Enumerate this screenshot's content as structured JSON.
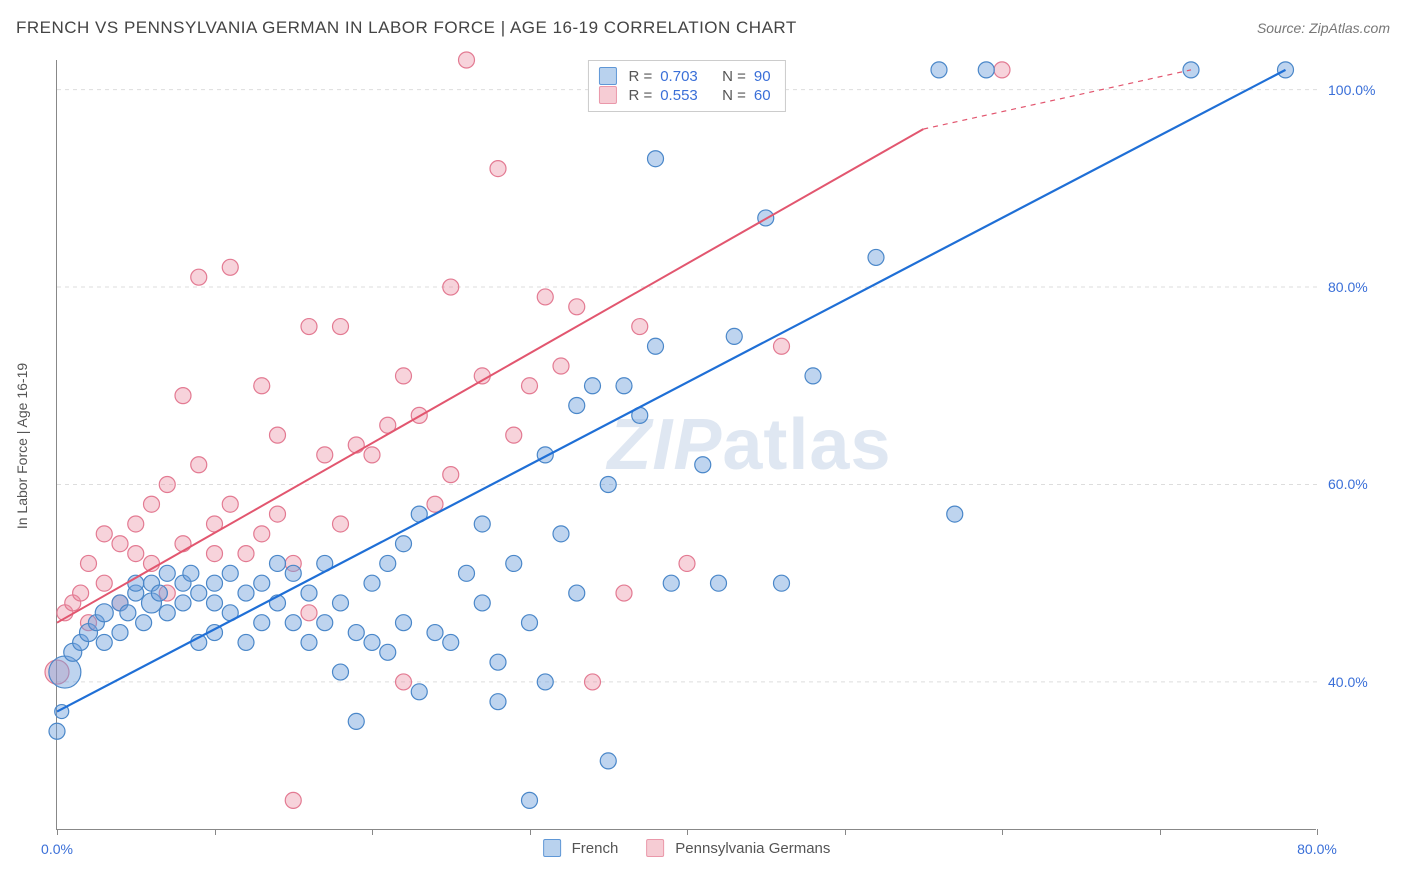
{
  "header": {
    "title": "FRENCH VS PENNSYLVANIA GERMAN IN LABOR FORCE | AGE 16-19 CORRELATION CHART",
    "source": "Source: ZipAtlas.com"
  },
  "axes": {
    "y_label": "In Labor Force | Age 16-19",
    "xlim": [
      0,
      80
    ],
    "ylim": [
      25,
      103
    ],
    "x_ticks": [
      0,
      10,
      20,
      30,
      40,
      50,
      60,
      70,
      80
    ],
    "x_tick_labels": {
      "0": "0.0%",
      "80": "80.0%"
    },
    "y_ticks": [
      40,
      60,
      80,
      100
    ],
    "y_tick_labels": {
      "40": "40.0%",
      "60": "60.0%",
      "80": "80.0%",
      "100": "100.0%"
    },
    "grid_color": "#dddddd",
    "axis_color": "#888888",
    "tick_label_color": "#3a6fd8"
  },
  "watermark": {
    "zip": "ZIP",
    "atlas": "atlas"
  },
  "series": {
    "french": {
      "label": "French",
      "marker_fill": "rgba(110,160,220,0.45)",
      "marker_stroke": "#4a87c9",
      "line_color": "#1f6fd6",
      "line_width": 2.2,
      "swatch_bg": "#b9d2ee",
      "swatch_border": "#5f97d6",
      "r": 0.703,
      "n": 90,
      "trend": {
        "x1": 0,
        "y1": 37,
        "x2": 78,
        "y2": 102
      },
      "points": [
        {
          "x": 0,
          "y": 35,
          "r": 8
        },
        {
          "x": 0.3,
          "y": 37,
          "r": 7
        },
        {
          "x": 0.5,
          "y": 41,
          "r": 16
        },
        {
          "x": 1,
          "y": 43,
          "r": 9
        },
        {
          "x": 1.5,
          "y": 44,
          "r": 8
        },
        {
          "x": 2,
          "y": 45,
          "r": 9
        },
        {
          "x": 2.5,
          "y": 46,
          "r": 8
        },
        {
          "x": 3,
          "y": 44,
          "r": 8
        },
        {
          "x": 3,
          "y": 47,
          "r": 9
        },
        {
          "x": 4,
          "y": 45,
          "r": 8
        },
        {
          "x": 4,
          "y": 48,
          "r": 8
        },
        {
          "x": 4.5,
          "y": 47,
          "r": 8
        },
        {
          "x": 5,
          "y": 49,
          "r": 8
        },
        {
          "x": 5,
          "y": 50,
          "r": 8
        },
        {
          "x": 5.5,
          "y": 46,
          "r": 8
        },
        {
          "x": 6,
          "y": 48,
          "r": 10
        },
        {
          "x": 6,
          "y": 50,
          "r": 8
        },
        {
          "x": 6.5,
          "y": 49,
          "r": 8
        },
        {
          "x": 7,
          "y": 47,
          "r": 8
        },
        {
          "x": 7,
          "y": 51,
          "r": 8
        },
        {
          "x": 8,
          "y": 48,
          "r": 8
        },
        {
          "x": 8,
          "y": 50,
          "r": 8
        },
        {
          "x": 8.5,
          "y": 51,
          "r": 8
        },
        {
          "x": 9,
          "y": 44,
          "r": 8
        },
        {
          "x": 9,
          "y": 49,
          "r": 8
        },
        {
          "x": 10,
          "y": 45,
          "r": 8
        },
        {
          "x": 10,
          "y": 48,
          "r": 8
        },
        {
          "x": 10,
          "y": 50,
          "r": 8
        },
        {
          "x": 11,
          "y": 47,
          "r": 8
        },
        {
          "x": 11,
          "y": 51,
          "r": 8
        },
        {
          "x": 12,
          "y": 49,
          "r": 8
        },
        {
          "x": 12,
          "y": 44,
          "r": 8
        },
        {
          "x": 13,
          "y": 46,
          "r": 8
        },
        {
          "x": 13,
          "y": 50,
          "r": 8
        },
        {
          "x": 14,
          "y": 52,
          "r": 8
        },
        {
          "x": 14,
          "y": 48,
          "r": 8
        },
        {
          "x": 15,
          "y": 46,
          "r": 8
        },
        {
          "x": 15,
          "y": 51,
          "r": 8
        },
        {
          "x": 16,
          "y": 44,
          "r": 8
        },
        {
          "x": 16,
          "y": 49,
          "r": 8
        },
        {
          "x": 17,
          "y": 52,
          "r": 8
        },
        {
          "x": 17,
          "y": 46,
          "r": 8
        },
        {
          "x": 18,
          "y": 41,
          "r": 8
        },
        {
          "x": 18,
          "y": 48,
          "r": 8
        },
        {
          "x": 19,
          "y": 36,
          "r": 8
        },
        {
          "x": 19,
          "y": 45,
          "r": 8
        },
        {
          "x": 20,
          "y": 44,
          "r": 8
        },
        {
          "x": 20,
          "y": 50,
          "r": 8
        },
        {
          "x": 21,
          "y": 52,
          "r": 8
        },
        {
          "x": 21,
          "y": 43,
          "r": 8
        },
        {
          "x": 22,
          "y": 46,
          "r": 8
        },
        {
          "x": 22,
          "y": 54,
          "r": 8
        },
        {
          "x": 23,
          "y": 39,
          "r": 8
        },
        {
          "x": 23,
          "y": 57,
          "r": 8
        },
        {
          "x": 24,
          "y": 45,
          "r": 8
        },
        {
          "x": 25,
          "y": 44,
          "r": 8
        },
        {
          "x": 26,
          "y": 51,
          "r": 8
        },
        {
          "x": 27,
          "y": 48,
          "r": 8
        },
        {
          "x": 27,
          "y": 56,
          "r": 8
        },
        {
          "x": 28,
          "y": 42,
          "r": 8
        },
        {
          "x": 28,
          "y": 38,
          "r": 8
        },
        {
          "x": 29,
          "y": 52,
          "r": 8
        },
        {
          "x": 30,
          "y": 28,
          "r": 8
        },
        {
          "x": 30,
          "y": 46,
          "r": 8
        },
        {
          "x": 31,
          "y": 40,
          "r": 8
        },
        {
          "x": 31,
          "y": 63,
          "r": 8
        },
        {
          "x": 32,
          "y": 55,
          "r": 8
        },
        {
          "x": 33,
          "y": 49,
          "r": 8
        },
        {
          "x": 33,
          "y": 68,
          "r": 8
        },
        {
          "x": 34,
          "y": 70,
          "r": 8
        },
        {
          "x": 35,
          "y": 60,
          "r": 8
        },
        {
          "x": 35,
          "y": 32,
          "r": 8
        },
        {
          "x": 36,
          "y": 70,
          "r": 8
        },
        {
          "x": 37,
          "y": 67,
          "r": 8
        },
        {
          "x": 38,
          "y": 93,
          "r": 8
        },
        {
          "x": 38,
          "y": 74,
          "r": 8
        },
        {
          "x": 39,
          "y": 50,
          "r": 8
        },
        {
          "x": 40,
          "y": 102,
          "r": 8
        },
        {
          "x": 41,
          "y": 62,
          "r": 8
        },
        {
          "x": 42,
          "y": 50,
          "r": 8
        },
        {
          "x": 43,
          "y": 75,
          "r": 8
        },
        {
          "x": 45,
          "y": 87,
          "r": 8
        },
        {
          "x": 46,
          "y": 50,
          "r": 8
        },
        {
          "x": 48,
          "y": 71,
          "r": 8
        },
        {
          "x": 52,
          "y": 83,
          "r": 8
        },
        {
          "x": 56,
          "y": 102,
          "r": 8
        },
        {
          "x": 57,
          "y": 57,
          "r": 8
        },
        {
          "x": 59,
          "y": 102,
          "r": 8
        },
        {
          "x": 72,
          "y": 102,
          "r": 8
        },
        {
          "x": 78,
          "y": 102,
          "r": 8
        }
      ]
    },
    "penn_german": {
      "label": "Pennsylvania Germans",
      "marker_fill": "rgba(235,140,160,0.38)",
      "marker_stroke": "#e37a92",
      "line_color": "#e2566f",
      "line_width": 2.0,
      "swatch_bg": "#f6ccd4",
      "swatch_border": "#ea98aa",
      "r": 0.553,
      "n": 60,
      "trend": {
        "x1": 0,
        "y1": 46,
        "x2": 55,
        "y2": 96
      },
      "trend_ext": {
        "x1": 55,
        "y1": 96,
        "x2": 72,
        "y2": 102
      },
      "points": [
        {
          "x": 0,
          "y": 41,
          "r": 12
        },
        {
          "x": 0.5,
          "y": 47,
          "r": 8
        },
        {
          "x": 1,
          "y": 48,
          "r": 8
        },
        {
          "x": 1.5,
          "y": 49,
          "r": 8
        },
        {
          "x": 2,
          "y": 46,
          "r": 8
        },
        {
          "x": 2,
          "y": 52,
          "r": 8
        },
        {
          "x": 3,
          "y": 55,
          "r": 8
        },
        {
          "x": 3,
          "y": 50,
          "r": 8
        },
        {
          "x": 4,
          "y": 48,
          "r": 8
        },
        {
          "x": 4,
          "y": 54,
          "r": 8
        },
        {
          "x": 5,
          "y": 53,
          "r": 8
        },
        {
          "x": 5,
          "y": 56,
          "r": 8
        },
        {
          "x": 6,
          "y": 52,
          "r": 8
        },
        {
          "x": 6,
          "y": 58,
          "r": 8
        },
        {
          "x": 7,
          "y": 49,
          "r": 8
        },
        {
          "x": 7,
          "y": 60,
          "r": 8
        },
        {
          "x": 8,
          "y": 69,
          "r": 8
        },
        {
          "x": 8,
          "y": 54,
          "r": 8
        },
        {
          "x": 9,
          "y": 81,
          "r": 8
        },
        {
          "x": 9,
          "y": 62,
          "r": 8
        },
        {
          "x": 10,
          "y": 56,
          "r": 8
        },
        {
          "x": 10,
          "y": 53,
          "r": 8
        },
        {
          "x": 11,
          "y": 82,
          "r": 8
        },
        {
          "x": 11,
          "y": 58,
          "r": 8
        },
        {
          "x": 12,
          "y": 53,
          "r": 8
        },
        {
          "x": 13,
          "y": 70,
          "r": 8
        },
        {
          "x": 13,
          "y": 55,
          "r": 8
        },
        {
          "x": 14,
          "y": 65,
          "r": 8
        },
        {
          "x": 14,
          "y": 57,
          "r": 8
        },
        {
          "x": 15,
          "y": 28,
          "r": 8
        },
        {
          "x": 15,
          "y": 52,
          "r": 8
        },
        {
          "x": 16,
          "y": 47,
          "r": 8
        },
        {
          "x": 16,
          "y": 76,
          "r": 8
        },
        {
          "x": 17,
          "y": 63,
          "r": 8
        },
        {
          "x": 18,
          "y": 76,
          "r": 8
        },
        {
          "x": 18,
          "y": 56,
          "r": 8
        },
        {
          "x": 19,
          "y": 64,
          "r": 8
        },
        {
          "x": 20,
          "y": 63,
          "r": 8
        },
        {
          "x": 21,
          "y": 66,
          "r": 8
        },
        {
          "x": 22,
          "y": 40,
          "r": 8
        },
        {
          "x": 22,
          "y": 71,
          "r": 8
        },
        {
          "x": 23,
          "y": 67,
          "r": 8
        },
        {
          "x": 24,
          "y": 58,
          "r": 8
        },
        {
          "x": 25,
          "y": 80,
          "r": 8
        },
        {
          "x": 25,
          "y": 61,
          "r": 8
        },
        {
          "x": 26,
          "y": 103,
          "r": 8
        },
        {
          "x": 27,
          "y": 71,
          "r": 8
        },
        {
          "x": 28,
          "y": 92,
          "r": 8
        },
        {
          "x": 29,
          "y": 65,
          "r": 8
        },
        {
          "x": 30,
          "y": 70,
          "r": 8
        },
        {
          "x": 31,
          "y": 79,
          "r": 8
        },
        {
          "x": 32,
          "y": 72,
          "r": 8
        },
        {
          "x": 33,
          "y": 78,
          "r": 8
        },
        {
          "x": 34,
          "y": 40,
          "r": 8
        },
        {
          "x": 36,
          "y": 49,
          "r": 8
        },
        {
          "x": 37,
          "y": 76,
          "r": 8
        },
        {
          "x": 40,
          "y": 52,
          "r": 8
        },
        {
          "x": 43,
          "y": 102,
          "r": 8
        },
        {
          "x": 46,
          "y": 74,
          "r": 8
        },
        {
          "x": 60,
          "y": 102,
          "r": 8
        }
      ]
    }
  },
  "legend_top_labels": {
    "r_prefix": "R = ",
    "n_prefix": "N = "
  },
  "legend_bottom": {
    "items": [
      {
        "key": "french"
      },
      {
        "key": "penn_german"
      }
    ]
  }
}
